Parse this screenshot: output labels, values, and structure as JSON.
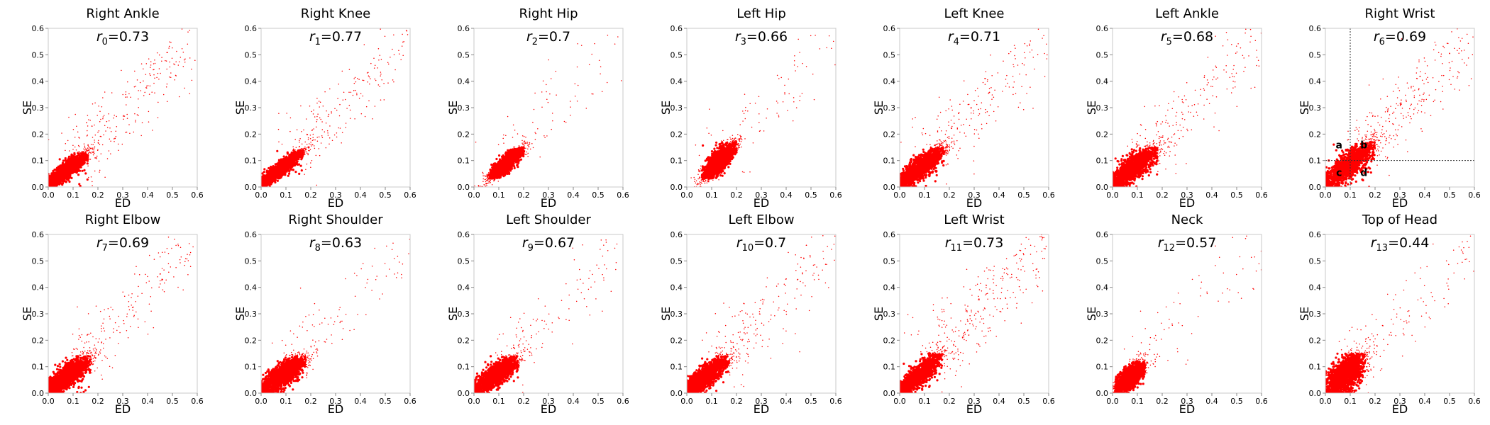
{
  "chart_data": {
    "type": "scatter",
    "layout": "small-multiples",
    "grid": false,
    "marker_color": "#ff0000",
    "shared_axes": {
      "xlabel": "ED",
      "ylabel": "SE",
      "xlim": [
        0,
        0.6
      ],
      "ylim": [
        0,
        0.6
      ],
      "xticks": [
        "0.0",
        "0.1",
        "0.2",
        "0.3",
        "0.4",
        "0.5",
        "0.6"
      ],
      "yticks": [
        "0.0",
        "0.1",
        "0.2",
        "0.3",
        "0.4",
        "0.5",
        "0.6"
      ]
    },
    "panels": [
      {
        "title": "Right Ankle",
        "r_symbol": "r",
        "r_index": "0",
        "r_value": "=0.73",
        "cluster": {
          "cx": 0.07,
          "cy": 0.06,
          "sx": 0.045,
          "sy": 0.035,
          "corr": 0.73,
          "tail": 0.16
        }
      },
      {
        "title": "Right Knee",
        "r_symbol": "r",
        "r_index": "1",
        "r_value": "=0.77",
        "cluster": {
          "cx": 0.08,
          "cy": 0.07,
          "sx": 0.045,
          "sy": 0.035,
          "corr": 0.77,
          "tail": 0.13
        }
      },
      {
        "title": "Right Hip",
        "r_symbol": "r",
        "r_index": "2",
        "r_value": "=0.7",
        "cluster": {
          "cx": 0.13,
          "cy": 0.09,
          "sx": 0.035,
          "sy": 0.03,
          "corr": 0.7,
          "tail": 0.05
        }
      },
      {
        "title": "Left Hip",
        "r_symbol": "r",
        "r_index": "3",
        "r_value": "=0.66",
        "cluster": {
          "cx": 0.13,
          "cy": 0.1,
          "sx": 0.035,
          "sy": 0.035,
          "corr": 0.66,
          "tail": 0.06
        }
      },
      {
        "title": "Left Knee",
        "r_symbol": "r",
        "r_index": "4",
        "r_value": "=0.71",
        "cluster": {
          "cx": 0.08,
          "cy": 0.07,
          "sx": 0.05,
          "sy": 0.04,
          "corr": 0.71,
          "tail": 0.14
        }
      },
      {
        "title": "Left Ankle",
        "r_symbol": "r",
        "r_index": "5",
        "r_value": "=0.68",
        "cluster": {
          "cx": 0.08,
          "cy": 0.07,
          "sx": 0.05,
          "sy": 0.04,
          "corr": 0.68,
          "tail": 0.13
        }
      },
      {
        "title": "Right Wrist",
        "r_symbol": "r",
        "r_index": "6",
        "r_value": "=0.69",
        "cluster": {
          "cx": 0.09,
          "cy": 0.08,
          "sx": 0.055,
          "sy": 0.045,
          "corr": 0.69,
          "tail": 0.18
        },
        "threshold_lines": {
          "x": 0.1,
          "y": 0.1
        },
        "region_labels": [
          {
            "label": "a",
            "x": 0.055,
            "y": 0.16
          },
          {
            "label": "b",
            "x": 0.155,
            "y": 0.16
          },
          {
            "label": "c",
            "x": 0.055,
            "y": 0.055
          },
          {
            "label": "d",
            "x": 0.155,
            "y": 0.055
          }
        ]
      },
      {
        "title": "Right Elbow",
        "r_symbol": "r",
        "r_index": "7",
        "r_value": "=0.69",
        "cluster": {
          "cx": 0.07,
          "cy": 0.06,
          "sx": 0.05,
          "sy": 0.04,
          "corr": 0.69,
          "tail": 0.12
        }
      },
      {
        "title": "Right Shoulder",
        "r_symbol": "r",
        "r_index": "8",
        "r_value": "=0.63",
        "cluster": {
          "cx": 0.09,
          "cy": 0.07,
          "sx": 0.045,
          "sy": 0.035,
          "corr": 0.63,
          "tail": 0.07
        }
      },
      {
        "title": "Left Shoulder",
        "r_symbol": "r",
        "r_index": "9",
        "r_value": "=0.67",
        "cluster": {
          "cx": 0.09,
          "cy": 0.07,
          "sx": 0.045,
          "sy": 0.035,
          "corr": 0.67,
          "tail": 0.08
        }
      },
      {
        "title": "Left Elbow",
        "r_symbol": "r",
        "r_index": "10",
        "r_value": "=0.7",
        "cluster": {
          "cx": 0.07,
          "cy": 0.06,
          "sx": 0.05,
          "sy": 0.04,
          "corr": 0.7,
          "tail": 0.12
        }
      },
      {
        "title": "Left Wrist",
        "r_symbol": "r",
        "r_index": "11",
        "r_value": "=0.73",
        "cluster": {
          "cx": 0.07,
          "cy": 0.06,
          "sx": 0.05,
          "sy": 0.045,
          "corr": 0.73,
          "tail": 0.2
        }
      },
      {
        "title": "Neck",
        "r_symbol": "r",
        "r_index": "12",
        "r_value": "=0.57",
        "cluster": {
          "cx": 0.07,
          "cy": 0.06,
          "sx": 0.03,
          "sy": 0.03,
          "corr": 0.57,
          "tail": 0.05
        }
      },
      {
        "title": "Top of Head",
        "r_symbol": "r",
        "r_index": "13",
        "r_value": "=0.44",
        "cluster": {
          "cx": 0.08,
          "cy": 0.07,
          "sx": 0.04,
          "sy": 0.04,
          "corr": 0.44,
          "tail": 0.09
        }
      }
    ]
  }
}
